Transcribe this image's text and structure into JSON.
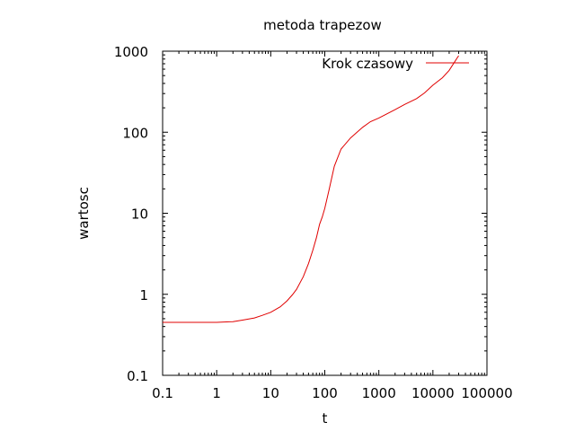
{
  "chart_data": {
    "type": "line",
    "title": "metoda trapezow",
    "xlabel": "t",
    "ylabel": "wartosc",
    "xscale": "log",
    "yscale": "log",
    "xlim": [
      0.1,
      100000
    ],
    "ylim": [
      0.1,
      1000
    ],
    "xticks": [
      0.1,
      1,
      10,
      100,
      1000,
      10000,
      100000
    ],
    "xtick_labels": [
      "0.1",
      "1",
      "10",
      "100",
      "1000",
      "10000",
      "100000"
    ],
    "yticks": [
      0.1,
      1,
      10,
      100,
      1000
    ],
    "ytick_labels": [
      "0.1",
      "1",
      "10",
      "100",
      "1000"
    ],
    "grid": false,
    "legend_position": "top-right",
    "line_color": "#e00000",
    "series": [
      {
        "name": "Krok czasowy",
        "x": [
          0.1,
          0.5,
          1,
          2,
          3,
          5,
          7,
          10,
          15,
          20,
          25,
          30,
          40,
          50,
          60,
          70,
          80,
          90,
          100,
          120,
          150,
          200,
          300,
          500,
          700,
          1000,
          2000,
          3000,
          5000,
          7000,
          10000,
          15000,
          20000,
          30000
        ],
        "y": [
          0.45,
          0.45,
          0.45,
          0.46,
          0.48,
          0.51,
          0.55,
          0.6,
          0.7,
          0.83,
          0.98,
          1.15,
          1.65,
          2.4,
          3.5,
          5.0,
          7.3,
          9.0,
          11.5,
          19.5,
          38,
          62,
          85,
          115,
          135,
          150,
          190,
          220,
          260,
          305,
          380,
          470,
          580,
          880
        ]
      }
    ]
  }
}
